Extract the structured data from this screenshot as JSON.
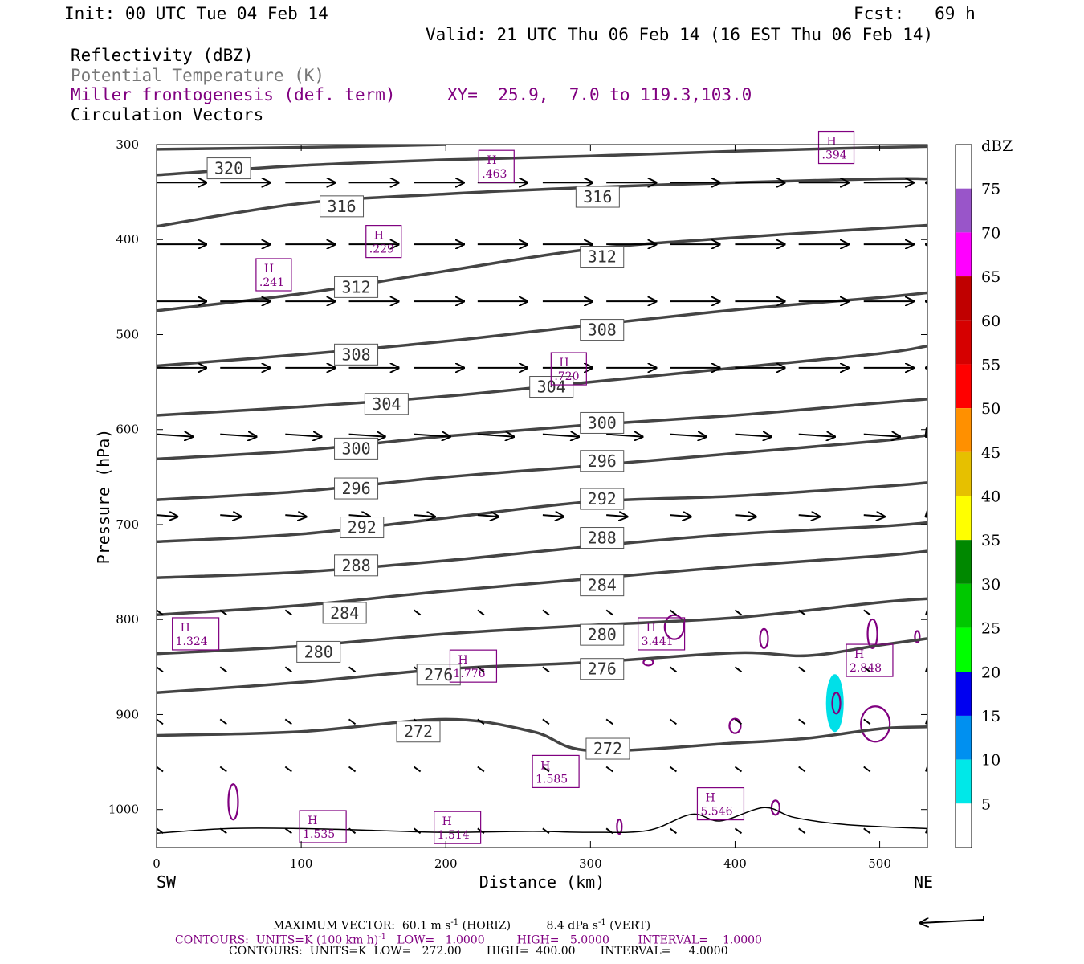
{
  "header": {
    "init": "Init: 00 UTC Tue 04 Feb 14",
    "fcst": "Fcst:   69 h",
    "valid": "Valid: 21 UTC Thu 06 Feb 14 (16 EST Thu 06 Feb 14)",
    "field1": "Reflectivity (dBZ)",
    "field2": "Potential Temperature (K)",
    "field3": "Miller frontogenesis (def. term)",
    "xy": "XY=  25.9,  7.0 to 119.3,103.0",
    "field4": "Circulation Vectors"
  },
  "colors": {
    "theta": "#444444",
    "frontogenesis": "#800080",
    "vectors": "#000000",
    "refl_5_10": "#00e0e8"
  },
  "chart_data": {
    "type": "cross-section",
    "xlabel": "Distance (km)",
    "ylabel": "Pressure (hPa)",
    "x_range": [
      0,
      533
    ],
    "y_range_hPa": [
      300,
      1040
    ],
    "x_ticks": [
      "0",
      "100",
      "200",
      "300",
      "400",
      "500"
    ],
    "y_ticks": [
      "300",
      "400",
      "500",
      "600",
      "700",
      "800",
      "900",
      "1000"
    ],
    "left_end_label": "SW",
    "right_end_label": "NE",
    "theta_contours_K": [
      {
        "value": 272,
        "points": [
          [
            0,
            922
          ],
          [
            100,
            918
          ],
          [
            200,
            905
          ],
          [
            260,
            918
          ],
          [
            300,
            938
          ],
          [
            400,
            930
          ],
          [
            450,
            925
          ],
          [
            500,
            915
          ],
          [
            533,
            913
          ]
        ]
      },
      {
        "value": 276,
        "points": [
          [
            0,
            877
          ],
          [
            100,
            866
          ],
          [
            200,
            852
          ],
          [
            300,
            845
          ],
          [
            400,
            835
          ],
          [
            450,
            838
          ],
          [
            500,
            827
          ],
          [
            533,
            820
          ]
        ]
      },
      {
        "value": 280,
        "points": [
          [
            0,
            836
          ],
          [
            100,
            828
          ],
          [
            200,
            815
          ],
          [
            300,
            806
          ],
          [
            400,
            798
          ],
          [
            500,
            782
          ],
          [
            533,
            778
          ]
        ]
      },
      {
        "value": 284,
        "points": [
          [
            0,
            795
          ],
          [
            100,
            785
          ],
          [
            200,
            770
          ],
          [
            300,
            757
          ],
          [
            400,
            744
          ],
          [
            500,
            733
          ],
          [
            533,
            728
          ]
        ]
      },
      {
        "value": 288,
        "points": [
          [
            0,
            756
          ],
          [
            100,
            750
          ],
          [
            200,
            738
          ],
          [
            300,
            723
          ],
          [
            400,
            710
          ],
          [
            500,
            702
          ],
          [
            533,
            698
          ]
        ]
      },
      {
        "value": 292,
        "points": [
          [
            0,
            718
          ],
          [
            100,
            710
          ],
          [
            200,
            693
          ],
          [
            300,
            676
          ],
          [
            400,
            670
          ],
          [
            500,
            660
          ],
          [
            533,
            656
          ]
        ]
      },
      {
        "value": 296,
        "points": [
          [
            0,
            674
          ],
          [
            100,
            665
          ],
          [
            200,
            650
          ],
          [
            300,
            638
          ],
          [
            400,
            625
          ],
          [
            500,
            612
          ],
          [
            533,
            606
          ]
        ]
      },
      {
        "value": 300,
        "points": [
          [
            0,
            631
          ],
          [
            100,
            622
          ],
          [
            200,
            607
          ],
          [
            300,
            595
          ],
          [
            400,
            585
          ],
          [
            500,
            572
          ],
          [
            533,
            568
          ]
        ]
      },
      {
        "value": 304,
        "points": [
          [
            0,
            585
          ],
          [
            100,
            576
          ],
          [
            200,
            565
          ],
          [
            300,
            550
          ],
          [
            400,
            535
          ],
          [
            500,
            520
          ],
          [
            533,
            512
          ]
        ]
      },
      {
        "value": 308,
        "points": [
          [
            0,
            533
          ],
          [
            100,
            521
          ],
          [
            200,
            507
          ],
          [
            300,
            490
          ],
          [
            400,
            474
          ],
          [
            500,
            461
          ],
          [
            533,
            456
          ]
        ]
      },
      {
        "value": 312,
        "points": [
          [
            0,
            475
          ],
          [
            100,
            457
          ],
          [
            200,
            433
          ],
          [
            300,
            410
          ],
          [
            400,
            398
          ],
          [
            500,
            388
          ],
          [
            533,
            385
          ]
        ]
      },
      {
        "value": 316,
        "points": [
          [
            0,
            386
          ],
          [
            100,
            362
          ],
          [
            200,
            352
          ],
          [
            300,
            345
          ],
          [
            400,
            340
          ],
          [
            500,
            336
          ],
          [
            533,
            336
          ]
        ]
      },
      {
        "value": 320,
        "points": [
          [
            0,
            332
          ],
          [
            100,
            322
          ],
          [
            200,
            316
          ],
          [
            300,
            312
          ],
          [
            400,
            307
          ],
          [
            500,
            303
          ],
          [
            533,
            302
          ]
        ]
      },
      {
        "value": 324,
        "points": [
          [
            0,
            305
          ],
          [
            100,
            303
          ],
          [
            200,
            300
          ]
        ]
      }
    ],
    "theta_label_positions": [
      {
        "text": "320",
        "x": 50,
        "p": 325
      },
      {
        "text": "316",
        "x": 128,
        "p": 365
      },
      {
        "text": "316",
        "x": 305,
        "p": 355
      },
      {
        "text": "312",
        "x": 138,
        "p": 450
      },
      {
        "text": "312",
        "x": 308,
        "p": 418
      },
      {
        "text": "308",
        "x": 138,
        "p": 521
      },
      {
        "text": "308",
        "x": 308,
        "p": 495
      },
      {
        "text": "304",
        "x": 159,
        "p": 573
      },
      {
        "text": "304",
        "x": 273,
        "p": 555
      },
      {
        "text": "300",
        "x": 138,
        "p": 620
      },
      {
        "text": "300",
        "x": 308,
        "p": 593
      },
      {
        "text": "296",
        "x": 138,
        "p": 662
      },
      {
        "text": "296",
        "x": 308,
        "p": 633
      },
      {
        "text": "292",
        "x": 142,
        "p": 703
      },
      {
        "text": "292",
        "x": 308,
        "p": 673
      },
      {
        "text": "288",
        "x": 138,
        "p": 743
      },
      {
        "text": "288",
        "x": 308,
        "p": 714
      },
      {
        "text": "284",
        "x": 130,
        "p": 793
      },
      {
        "text": "284",
        "x": 308,
        "p": 764
      },
      {
        "text": "280",
        "x": 112,
        "p": 834
      },
      {
        "text": "280",
        "x": 308,
        "p": 816
      },
      {
        "text": "276",
        "x": 195,
        "p": 858
      },
      {
        "text": "276",
        "x": 308,
        "p": 852
      },
      {
        "text": "272",
        "x": 181,
        "p": 918
      },
      {
        "text": "272",
        "x": 312,
        "p": 936
      }
    ],
    "frontogenesis_maxima": [
      {
        "label": "H",
        "value": ".463",
        "x": 235,
        "p": 323
      },
      {
        "label": "H",
        "value": ".394",
        "x": 470,
        "p": 303
      },
      {
        "label": "H",
        "value": ".229",
        "x": 157,
        "p": 402
      },
      {
        "label": "H",
        "value": ".241",
        "x": 81,
        "p": 437
      },
      {
        "label": "H",
        "value": ".720",
        "x": 285,
        "p": 536
      },
      {
        "label": "H",
        "value": "1.324",
        "x": 27,
        "p": 815
      },
      {
        "label": "H",
        "value": "1.776",
        "x": 219,
        "p": 849
      },
      {
        "label": "H",
        "value": "3.441",
        "x": 349,
        "p": 815
      },
      {
        "label": "H",
        "value": "2.848",
        "x": 493,
        "p": 843
      },
      {
        "label": "H",
        "value": "1.585",
        "x": 276,
        "p": 960
      },
      {
        "label": "H",
        "value": "5.546",
        "x": 390,
        "p": 994
      },
      {
        "label": "H",
        "value": "1.535",
        "x": 115,
        "p": 1018
      },
      {
        "label": "H",
        "value": "1.514",
        "x": 208,
        "p": 1019
      }
    ],
    "reflectivity_colorbar": {
      "unit": "dBZ",
      "levels": [
        "5",
        "10",
        "15",
        "20",
        "25",
        "30",
        "35",
        "40",
        "45",
        "50",
        "55",
        "60",
        "65",
        "70",
        "75"
      ],
      "colors": [
        "#ffffff",
        "#00e8e8",
        "#0090f0",
        "#0000f0",
        "#00ff00",
        "#00c800",
        "#008800",
        "#ffff00",
        "#e6c000",
        "#ff9000",
        "#ff0000",
        "#d60000",
        "#c00000",
        "#ff00ff",
        "#9955c9",
        "#ffffff"
      ]
    },
    "reflectivity_regions": [
      {
        "dBZ_min": 5,
        "x_center": 469,
        "p_center": 888
      }
    ],
    "vector_rows_hPa": [
      340,
      405,
      465,
      535,
      605,
      690,
      790,
      850,
      905,
      955,
      1020
    ],
    "vector_columns_km": [
      0,
      44,
      89,
      133,
      178,
      222,
      267,
      311,
      355,
      400,
      444,
      489,
      533
    ]
  },
  "footer": {
    "max_vector_prefix": "MAXIMUM VECTOR:  60.1 m s",
    "max_vector_mid": " (HORIZ)          8.4 dPa s",
    "max_vector_suffix": " (VERT)",
    "sup": "-1",
    "contours1_a": "CONTOURS:  UNITS=K (100 km h)",
    "contours1_b": "   LOW=   1.0000         HIGH=   5.0000        INTERVAL=    1.0000",
    "contours2": "CONTOURS:  UNITS=K  LOW=   272.00       HIGH=  400.00       INTERVAL=     4.0000"
  }
}
